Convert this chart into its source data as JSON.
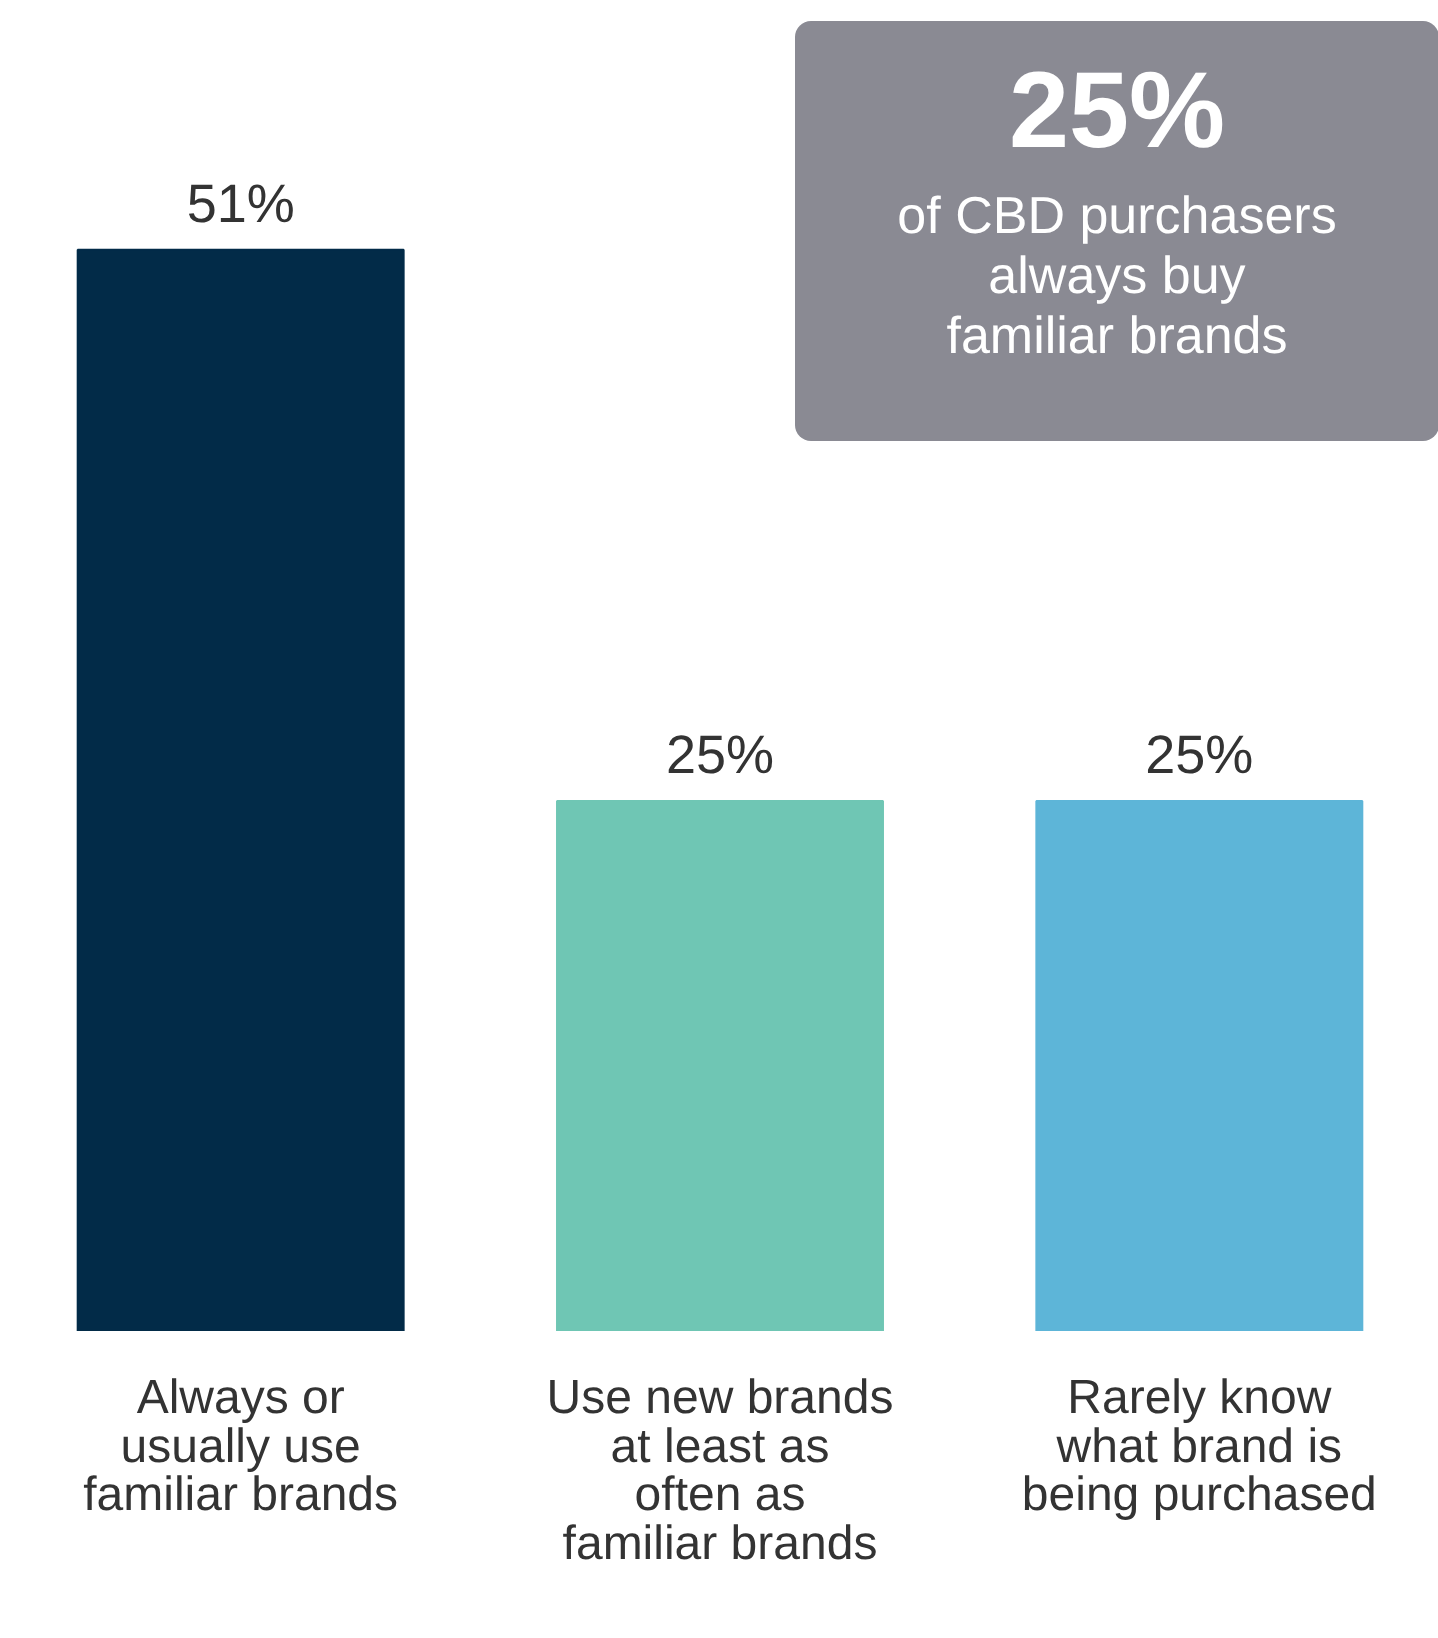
{
  "chart_data": {
    "type": "bar",
    "categories": [
      "Always or usually use familiar brands",
      "Use new brands at least as often as familiar brands",
      "Rarely know what brand is being purchased"
    ],
    "values": [
      51,
      25,
      25
    ],
    "colors": [
      "#022b48",
      "#6fc6b4",
      "#5db5d8"
    ],
    "data_labels": true,
    "value_labels": [
      "51%",
      "25%",
      "25%"
    ],
    "tick_labels": "x",
    "grid": false,
    "annotations": [
      "25%",
      "of CBD purchasers always buy familiar brands"
    ]
  }
}
